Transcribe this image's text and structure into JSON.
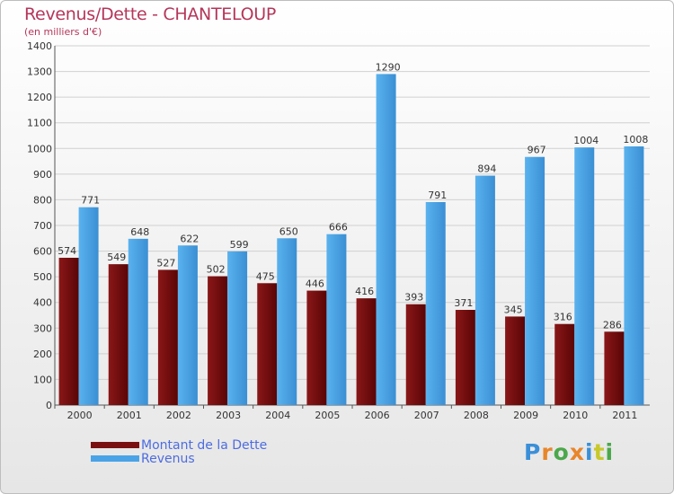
{
  "chart_data": {
    "type": "bar",
    "title": "Revenus/Dette - CHANTELOUP",
    "subtitle": "(en milliers d'€)",
    "categories": [
      "2000",
      "2001",
      "2002",
      "2003",
      "2004",
      "2005",
      "2006",
      "2007",
      "2008",
      "2009",
      "2010",
      "2011"
    ],
    "series": [
      {
        "name": "Montant de la Dette",
        "color": "#7a0f10",
        "values": [
          574,
          549,
          527,
          502,
          475,
          446,
          416,
          393,
          371,
          345,
          316,
          286
        ]
      },
      {
        "name": "Revenus",
        "color": "#4aa3e6",
        "values": [
          771,
          648,
          622,
          599,
          650,
          666,
          1290,
          791,
          894,
          967,
          1004,
          1008
        ]
      }
    ],
    "ylim": [
      0,
      1400
    ],
    "yticks": [
      0,
      100,
      200,
      300,
      400,
      500,
      600,
      700,
      800,
      900,
      1000,
      1100,
      1200,
      1300,
      1400
    ],
    "grid": true,
    "legend_position": "bottom-left"
  },
  "logo": {
    "text": "Proxiti",
    "letters": [
      "P",
      "r",
      "o",
      "x",
      "i",
      "t",
      "i"
    ],
    "colors": [
      "#3a8fd8",
      "#e8862a",
      "#4aa84a",
      "#e8862a",
      "#3a8fd8",
      "#c8c82a",
      "#4aa84a"
    ]
  }
}
